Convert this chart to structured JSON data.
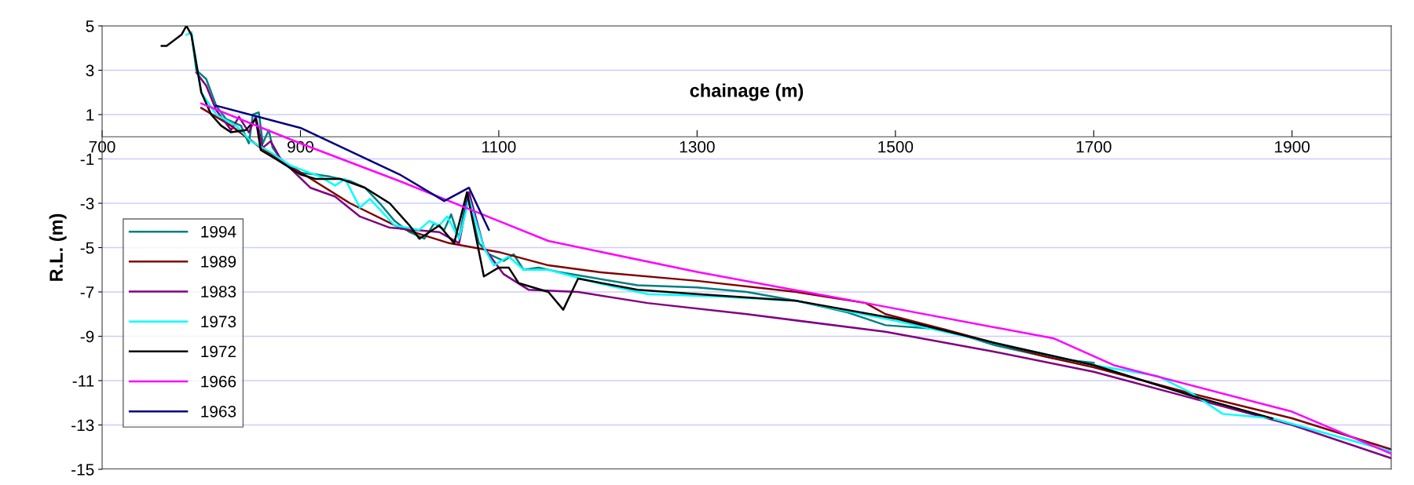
{
  "chart_data": {
    "type": "line",
    "xlabel": "chainage (m)",
    "ylabel": "R.L. (m)",
    "xlim": [
      700,
      2000
    ],
    "xticks": [
      700,
      900,
      1100,
      1300,
      1500,
      1700,
      1900
    ],
    "ylim": [
      -15,
      5
    ],
    "yticks": [
      5,
      3,
      1,
      -1,
      -3,
      -5,
      -7,
      -9,
      -11,
      -13,
      -15
    ],
    "grid": "y",
    "legend": "left",
    "marker": "none",
    "line_style": "solid",
    "series": [
      {
        "name": "1994",
        "color": "#008080",
        "x": [
          790,
          795,
          805,
          815,
          825,
          840,
          848,
          852,
          858,
          862,
          868,
          872,
          880,
          895,
          915,
          930,
          950,
          965,
          980,
          995,
          1010,
          1025,
          1035,
          1045,
          1052,
          1060,
          1068,
          1080,
          1090,
          1105,
          1115,
          1125,
          1140,
          1160,
          1200,
          1240,
          1300,
          1350,
          1400,
          1450,
          1470,
          1490,
          1550,
          1600,
          1660,
          1700
        ],
        "values": [
          4.7,
          3.0,
          2.6,
          1.4,
          0.8,
          0.5,
          -0.3,
          1.0,
          1.1,
          -0.3,
          0.3,
          -0.5,
          -1.0,
          -1.6,
          -1.7,
          -1.8,
          -2.0,
          -2.3,
          -3.0,
          -3.8,
          -4.3,
          -4.6,
          -3.9,
          -4.2,
          -3.5,
          -4.6,
          -2.6,
          -4.8,
          -5.3,
          -5.6,
          -5.3,
          -6.0,
          -5.9,
          -6.1,
          -6.4,
          -6.7,
          -6.8,
          -7.0,
          -7.4,
          -7.9,
          -8.2,
          -8.5,
          -8.7,
          -9.4,
          -10.0,
          -10.2
        ]
      },
      {
        "name": "1989",
        "color": "#800000",
        "x": [
          800,
          830,
          860,
          900,
          950,
          1000,
          1050,
          1100,
          1150,
          1200,
          1300,
          1400,
          1470,
          1490,
          1550,
          1650,
          1700,
          1800,
          1900,
          2000
        ],
        "values": [
          1.3,
          0.5,
          -0.5,
          -1.6,
          -3.0,
          -4.1,
          -4.8,
          -5.2,
          -5.8,
          -6.1,
          -6.5,
          -7.0,
          -7.5,
          -8.0,
          -8.7,
          -9.9,
          -10.4,
          -11.6,
          -12.7,
          -14.1
        ]
      },
      {
        "name": "1983",
        "color": "#800080",
        "x": [
          795,
          805,
          815,
          830,
          838,
          848,
          855,
          862,
          870,
          880,
          910,
          935,
          960,
          990,
          1040,
          1060,
          1070,
          1085,
          1105,
          1130,
          1180,
          1250,
          1350,
          1490,
          1600,
          1700,
          1800,
          1900,
          2000
        ],
        "values": [
          2.9,
          2.3,
          1.2,
          0.3,
          0.9,
          0.2,
          0.9,
          -0.5,
          -0.2,
          -1.0,
          -2.3,
          -2.7,
          -3.6,
          -4.1,
          -4.3,
          -4.8,
          -2.5,
          -5.0,
          -6.2,
          -6.9,
          -7.0,
          -7.5,
          -8.0,
          -8.8,
          -9.7,
          -10.6,
          -11.8,
          -13.0,
          -14.5
        ]
      },
      {
        "name": "1973",
        "color": "#00ffff",
        "x": [
          785,
          790,
          800,
          815,
          835,
          850,
          870,
          890,
          920,
          935,
          945,
          960,
          970,
          995,
          1020,
          1030,
          1040,
          1048,
          1060,
          1070,
          1085,
          1095,
          1110,
          1125,
          1150,
          1200,
          1250,
          1320,
          1400,
          1500,
          1600,
          1700,
          1765,
          1800,
          1830,
          1880,
          2000
        ],
        "values": [
          4.6,
          4.7,
          2.0,
          1.0,
          0.5,
          -0.2,
          -0.7,
          -1.3,
          -1.8,
          -2.2,
          -1.9,
          -3.2,
          -2.8,
          -4.0,
          -4.2,
          -3.8,
          -4.0,
          -3.6,
          -4.6,
          -2.8,
          -5.0,
          -5.8,
          -5.4,
          -6.0,
          -6.0,
          -6.6,
          -7.1,
          -7.2,
          -7.4,
          -8.3,
          -9.3,
          -10.3,
          -10.8,
          -11.6,
          -12.5,
          -12.7,
          -14.2
        ]
      },
      {
        "name": "1972",
        "color": "#000000",
        "x": [
          760,
          765,
          780,
          785,
          790,
          800,
          810,
          820,
          830,
          845,
          855,
          860,
          875,
          900,
          915,
          940,
          965,
          990,
          1010,
          1020,
          1040,
          1055,
          1068,
          1085,
          1100,
          1110,
          1120,
          1150,
          1165,
          1180,
          1240,
          1300,
          1400,
          1500,
          1600,
          1700,
          1800,
          1880
        ],
        "values": [
          4.1,
          4.1,
          4.6,
          5.0,
          4.6,
          2.0,
          1.0,
          0.5,
          0.2,
          0.3,
          0.8,
          -0.6,
          -1.0,
          -1.7,
          -1.9,
          -1.9,
          -2.3,
          -3.0,
          -4.0,
          -4.6,
          -4.0,
          -4.8,
          -2.5,
          -6.3,
          -5.9,
          -5.9,
          -6.6,
          -7.0,
          -7.8,
          -6.4,
          -6.9,
          -7.1,
          -7.4,
          -8.2,
          -9.3,
          -10.3,
          -11.7,
          -12.7
        ]
      },
      {
        "name": "1966",
        "color": "#ff00ff",
        "x": [
          800,
          900,
          1000,
          1100,
          1150,
          1300,
          1470,
          1660,
          1720,
          1900,
          2000
        ],
        "values": [
          1.5,
          -0.3,
          -2.0,
          -3.8,
          -4.7,
          -6.1,
          -7.5,
          -9.1,
          -10.3,
          -12.4,
          -14.3
        ]
      },
      {
        "name": "1963",
        "color": "#000080",
        "x": [
          815,
          900,
          1000,
          1045,
          1070,
          1090
        ],
        "values": [
          1.4,
          0.4,
          -1.7,
          -2.9,
          -2.3,
          -4.2
        ]
      }
    ]
  }
}
